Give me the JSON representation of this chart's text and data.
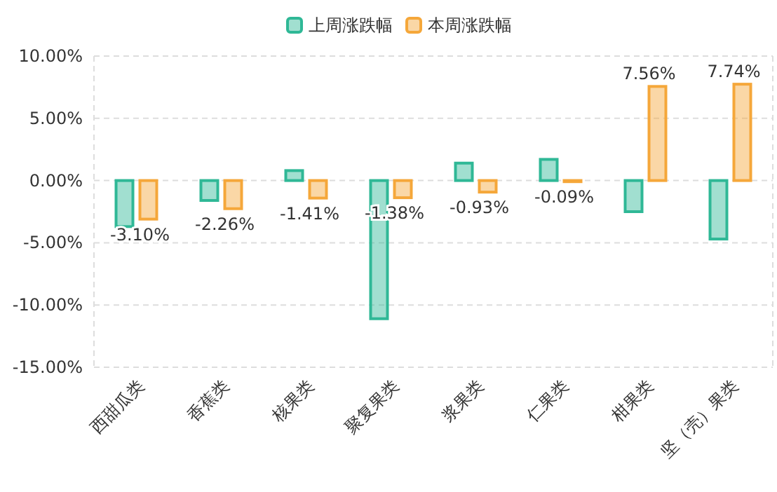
{
  "chart_data": {
    "type": "bar",
    "categories": [
      "西甜瓜类",
      "香蕉类",
      "核果类",
      "聚复果类",
      "浆果类",
      "仁果类",
      "柑果类",
      "坚（壳）果类"
    ],
    "series": [
      {
        "name": "上周涨跌幅",
        "color": "#2fb896",
        "values": [
          -3.7,
          -1.6,
          0.8,
          -11.1,
          1.4,
          1.7,
          -2.5,
          -4.7
        ]
      },
      {
        "name": "本周涨跌幅",
        "color": "#f5a73a",
        "values": [
          -3.1,
          -2.26,
          -1.41,
          -1.38,
          -0.93,
          -0.09,
          7.56,
          7.74
        ],
        "value_labels": [
          "-3.10%",
          "-2.26%",
          "-1.41%",
          "-1.38%",
          "-0.93%",
          "-0.09%",
          "7.56%",
          "7.74%"
        ]
      }
    ],
    "ylim": [
      -15,
      10
    ],
    "yticks": [
      {
        "value": -15,
        "label": "-15.00%"
      },
      {
        "value": -10,
        "label": "-10.00%"
      },
      {
        "value": -5,
        "label": "-5.00%"
      },
      {
        "value": 0,
        "label": "0.00%"
      },
      {
        "value": 5,
        "label": "5.00%"
      },
      {
        "value": 10,
        "label": "10.00%"
      }
    ],
    "grid": "y",
    "legend": "top"
  }
}
